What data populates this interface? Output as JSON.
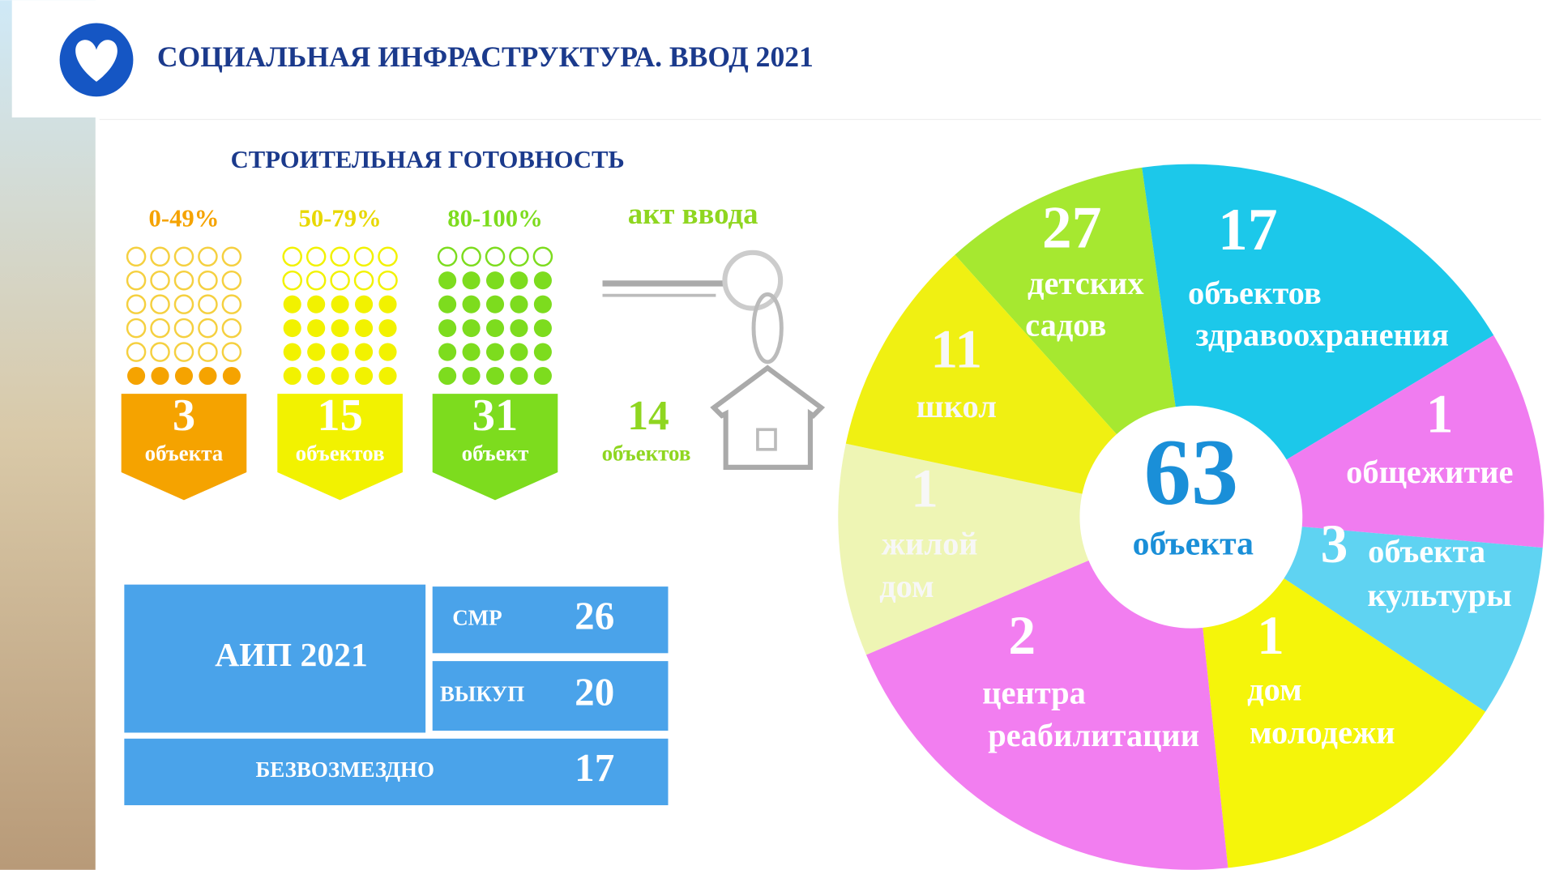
{
  "header": {
    "title": "СОЦИАЛЬНАЯ ИНФРАСТРУКТУРА. ВВОД 2021"
  },
  "readiness": {
    "title": "СТРОИТЕЛЬНАЯ ГОТОВНОСТЬ",
    "groups": [
      {
        "range": "0-49%",
        "count": 3,
        "unit": "объекта",
        "color": "#f5a300"
      },
      {
        "range": "50-79%",
        "count": 15,
        "unit": "объектов",
        "color": "#f2f200"
      },
      {
        "range": "80-100%",
        "count": 31,
        "unit": "объект",
        "color": "#7ddc1e"
      }
    ],
    "act": {
      "label": "акт ввода",
      "count": 14,
      "unit": "объектов",
      "color": "#8fd620"
    }
  },
  "funding": {
    "title": "АИП 2021",
    "rows": [
      {
        "label": "СМР",
        "value": 26
      },
      {
        "label": "ВЫКУП",
        "value": 20
      },
      {
        "label": "БЕЗВОЗМЕЗДНО",
        "value": 17
      }
    ]
  },
  "wheel": {
    "total": 63,
    "total_label": "объекта",
    "segments": [
      {
        "value": 27,
        "lines": [
          "детских",
          "садов"
        ],
        "color": "#a6e830"
      },
      {
        "value": 17,
        "lines": [
          "объектов",
          "здравоохранения"
        ],
        "color": "#1cc8ea"
      },
      {
        "value": 1,
        "lines": [
          "общежитие"
        ],
        "color": "#f07cf0"
      },
      {
        "value": 3,
        "lines": [
          "объекта",
          "культуры"
        ],
        "color": "#5fd3f2"
      },
      {
        "value": 1,
        "lines": [
          "дом",
          "молодежи"
        ],
        "color": "#f5f50a"
      },
      {
        "value": 2,
        "lines": [
          "центра",
          "реабилитации"
        ],
        "color": "#f27ef0"
      },
      {
        "value": 1,
        "lines": [
          "жилой",
          "дом"
        ],
        "color": "#eef5b4"
      },
      {
        "value": 11,
        "lines": [
          "школ"
        ],
        "color": "#f0f012"
      }
    ]
  }
}
